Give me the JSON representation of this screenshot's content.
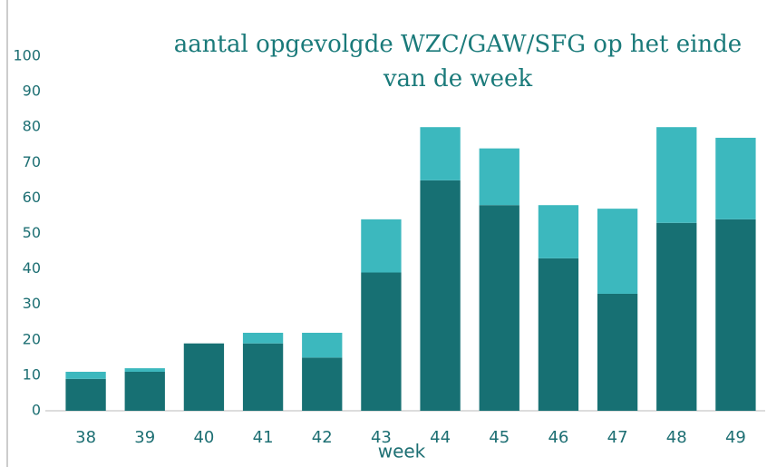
{
  "chart_data": {
    "type": "stacked_bar",
    "title": "aantal opgevolgde WZC/GAW/SFG op het einde van de week",
    "x_label": "week",
    "categories": [
      "38",
      "39",
      "40",
      "41",
      "42",
      "43",
      "44",
      "45",
      "46",
      "47",
      "48",
      "49"
    ],
    "series": [
      {
        "color": "#177073",
        "values": [
          9,
          11,
          19,
          19,
          15,
          39,
          65,
          58,
          43,
          33,
          53,
          54
        ]
      },
      {
        "color": "#3cb8be",
        "values": [
          2,
          1,
          0,
          3,
          7,
          15,
          15,
          16,
          15,
          24,
          27,
          23
        ]
      }
    ],
    "ylim": [
      0,
      100
    ],
    "yticks": [
      0,
      10,
      20,
      30,
      40,
      50,
      60,
      70,
      80,
      90,
      100
    ],
    "grid": false
  }
}
